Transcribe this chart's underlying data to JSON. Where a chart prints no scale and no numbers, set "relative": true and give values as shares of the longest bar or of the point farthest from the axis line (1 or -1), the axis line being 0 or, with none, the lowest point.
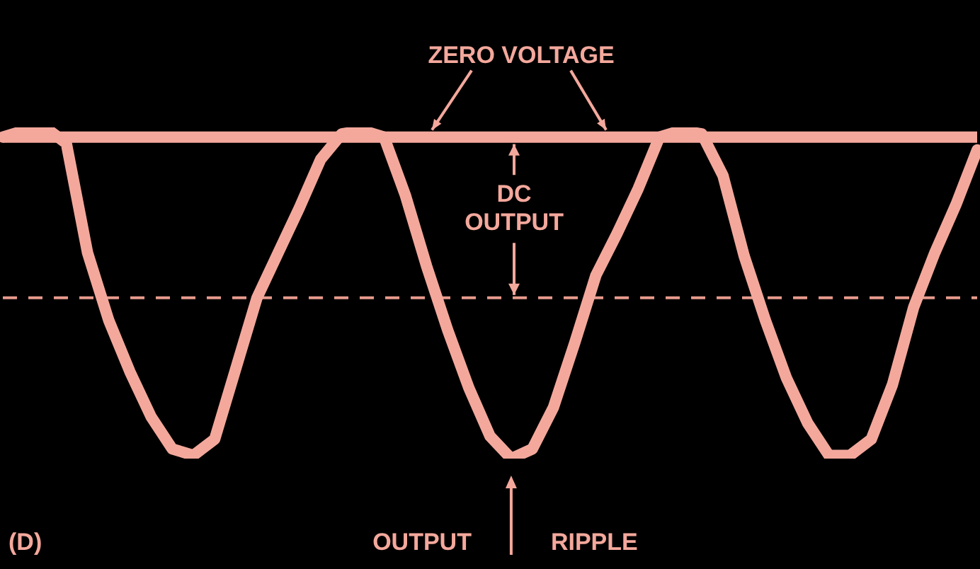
{
  "chart_data": {
    "type": "line",
    "relative": true,
    "marker": "none",
    "line_style": "solid",
    "categories": [
      null,
      null,
      null,
      null,
      null,
      null,
      null,
      null,
      null,
      null,
      null,
      null,
      null,
      null,
      null,
      null,
      null,
      null,
      null,
      null,
      null,
      null,
      null,
      null,
      null,
      null,
      null,
      null,
      null,
      null,
      null,
      null,
      null,
      null,
      null,
      null,
      null,
      null,
      null,
      null,
      null,
      null,
      null,
      null,
      null,
      null,
      null
    ],
    "series": [
      {
        "color": "#f4a89c",
        "values": [
          0,
          0.02,
          0.03,
          -0.02,
          -0.36,
          -0.57,
          -0.73,
          -0.87,
          -0.97,
          -0.99,
          -0.94,
          -0.72,
          -0.5,
          -0.36,
          -0.22,
          -0.07,
          0.01,
          0.02,
          0,
          -0.18,
          -0.4,
          -0.6,
          -0.78,
          -0.93,
          -1,
          -0.97,
          -0.84,
          -0.64,
          -0.43,
          -0.3,
          -0.16,
          0,
          0.02,
          0.01,
          -0.12,
          -0.37,
          -0.57,
          -0.75,
          -0.89,
          -0.99,
          -0.99,
          -0.94,
          -0.77,
          -0.53,
          -0.36,
          -0.21,
          -0.04
        ]
      }
    ],
    "ref_lines": [
      {
        "axis": "y",
        "value": 0,
        "label": "ZERO VOLTAGE",
        "color": "#f4a89c",
        "line_style": "solid"
      },
      {
        "axis": "y",
        "value": -0.5,
        "color": "#e89a8c",
        "line_style": "dashed"
      }
    ],
    "annotations": [
      "DC OUTPUT",
      "OUTPUT",
      "RIPPLE",
      "(D)"
    ]
  }
}
